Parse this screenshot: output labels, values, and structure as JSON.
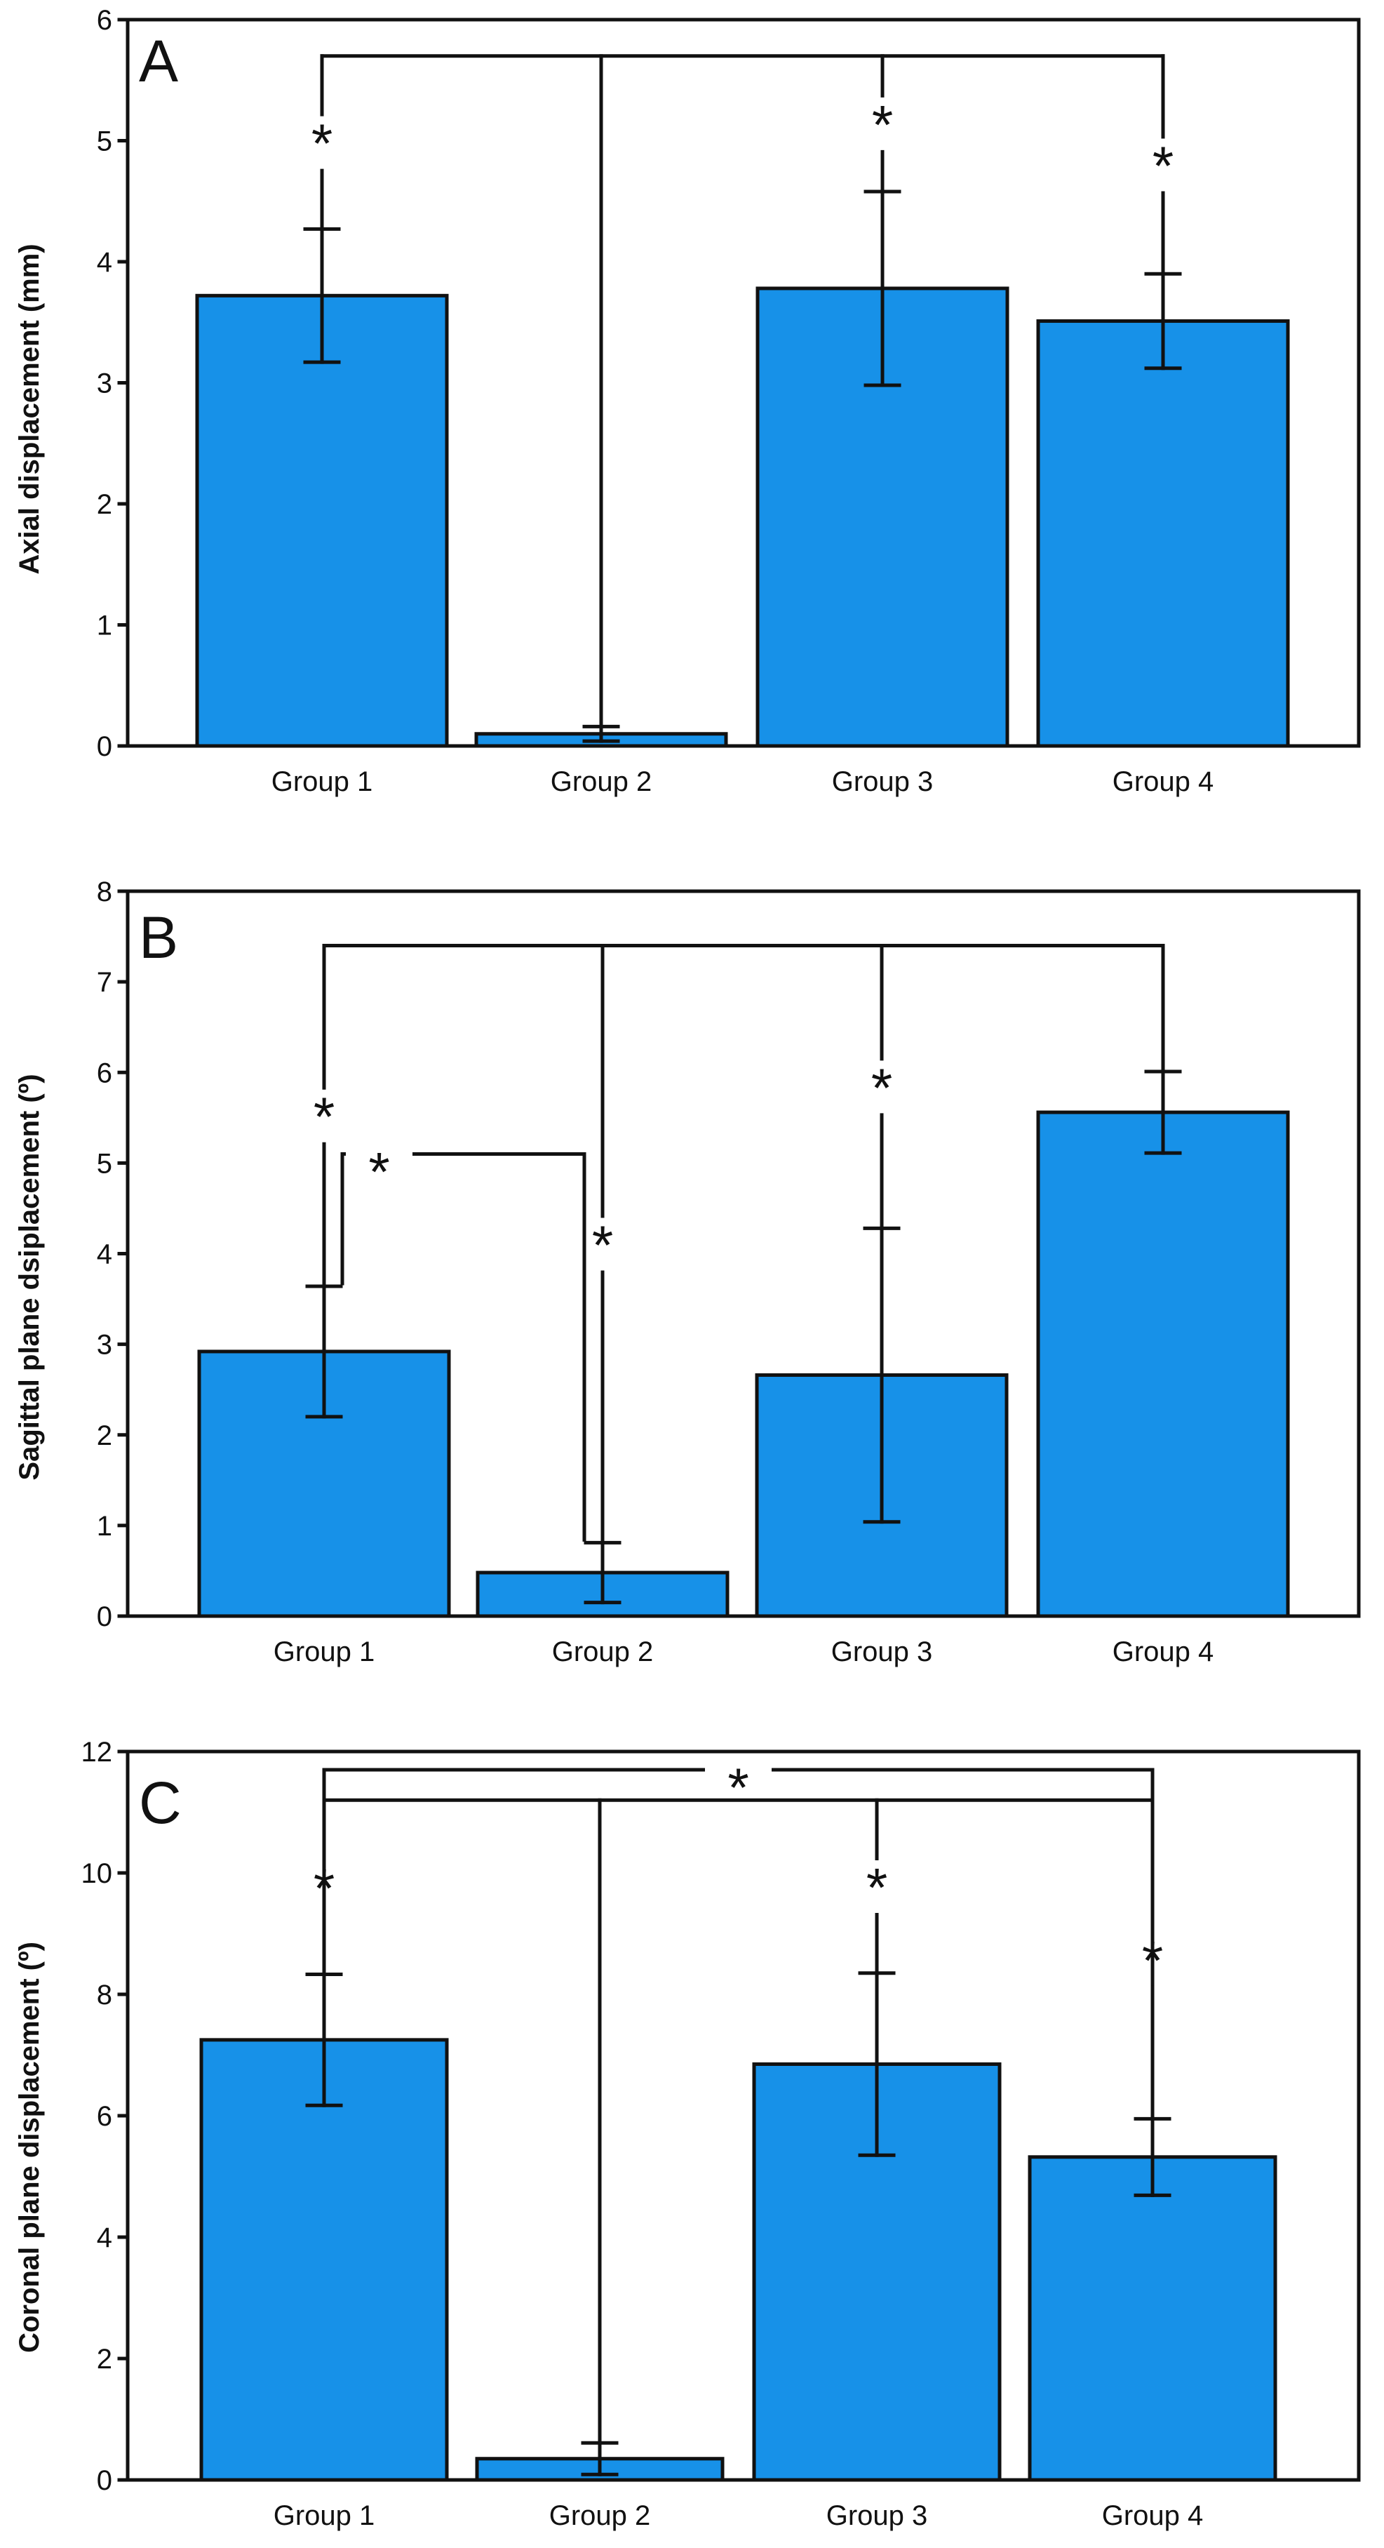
{
  "colors": {
    "bar_fill": "#1791e8",
    "stroke": "#111111"
  },
  "chart_data": [
    {
      "type": "bar",
      "panel_label": "A",
      "ylabel": "Axial displacement (mm)",
      "categories": [
        "Group 1",
        "Group 2",
        "Group 3",
        "Group 4"
      ],
      "values": [
        3.72,
        0.1,
        3.78,
        3.51
      ],
      "errors": [
        0.55,
        0.06,
        0.8,
        0.39
      ],
      "yticks": [
        "0",
        "1",
        "2",
        "3",
        "4",
        "5",
        "6"
      ],
      "ylim": [
        0,
        6
      ],
      "significance": [
        {
          "connector": 5.7,
          "groups": [
            1,
            2,
            3,
            4
          ],
          "star": "*",
          "star_over_groups": [
            1,
            3,
            4
          ]
        }
      ]
    },
    {
      "type": "bar",
      "panel_label": "B",
      "ylabel": "Sagittal plane dsiplacement (º)",
      "categories": [
        "Group 1",
        "Group 2",
        "Group 3",
        "Group 4"
      ],
      "values": [
        2.92,
        0.48,
        2.66,
        5.56
      ],
      "errors": [
        0.72,
        0.33,
        1.62,
        0.45
      ],
      "yticks": [
        "0",
        "1",
        "2",
        "3",
        "4",
        "5",
        "6",
        "7",
        "8"
      ],
      "ylim": [
        0,
        8
      ],
      "significance": [
        {
          "connector": 7.4,
          "groups": [
            1,
            2,
            3,
            4
          ],
          "star": "*",
          "star_over_groups": [
            1,
            2,
            3
          ]
        },
        {
          "connector": 5.1,
          "groups": [
            1,
            2
          ],
          "star": "*",
          "star_on_connector": true
        }
      ]
    },
    {
      "type": "bar",
      "panel_label": "C",
      "ylabel": "Coronal plane displacement (º)",
      "categories": [
        "Group 1",
        "Group 2",
        "Group 3",
        "Group 4"
      ],
      "values": [
        7.25,
        0.35,
        6.85,
        5.32
      ],
      "errors": [
        1.08,
        0.26,
        1.5,
        0.63
      ],
      "yticks": [
        "0",
        "2",
        "4",
        "6",
        "8",
        "10",
        "12"
      ],
      "ylim": [
        0,
        12
      ],
      "significance": [
        {
          "connector": 11.7,
          "groups": [
            1,
            4
          ],
          "star": "*",
          "star_on_connector": true
        },
        {
          "connector": 11.2,
          "groups": [
            1,
            2,
            3,
            4
          ],
          "star": "*",
          "star_over_groups": [
            1,
            3,
            4
          ]
        }
      ]
    }
  ]
}
